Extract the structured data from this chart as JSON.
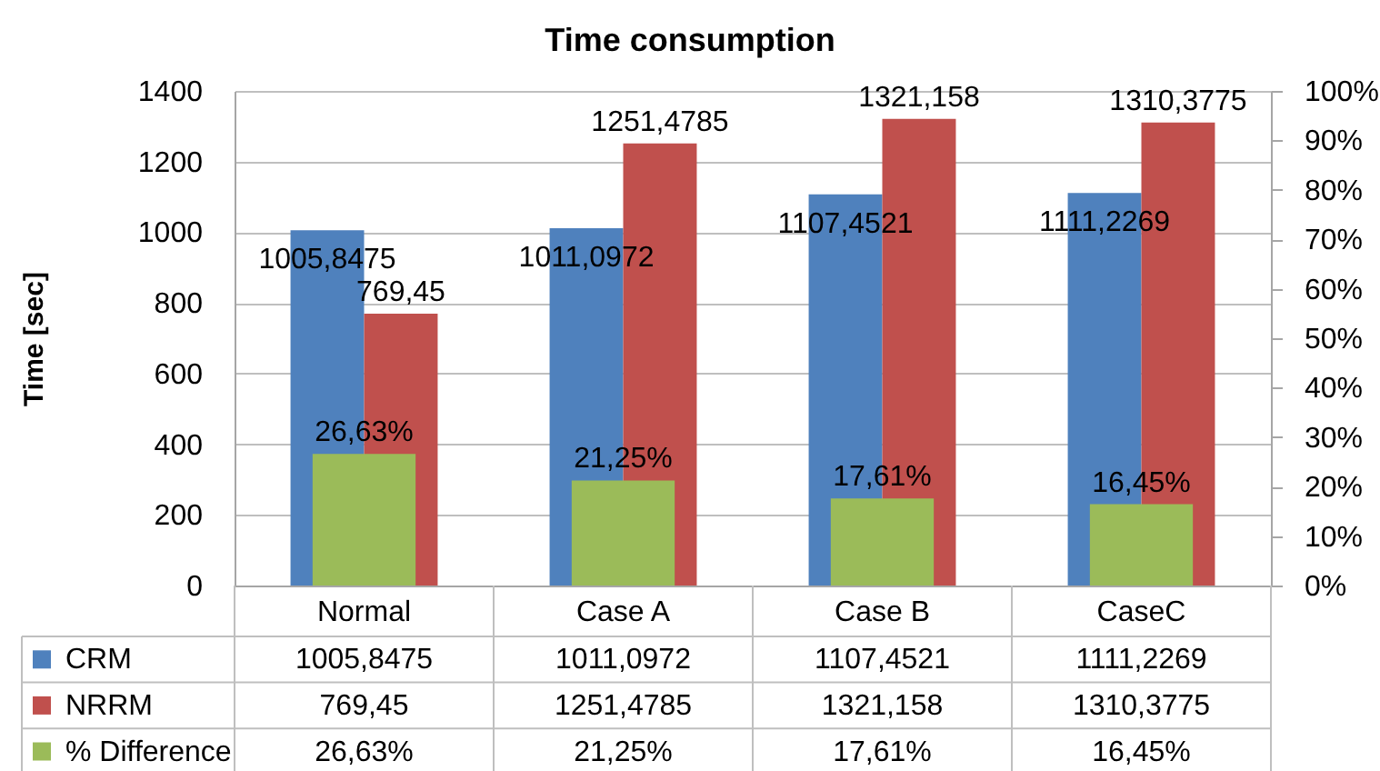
{
  "chart_data": {
    "type": "bar",
    "title": "Time consumption",
    "ylabel": "Time [sec]",
    "categories": [
      "Normal",
      "Case A",
      "Case B",
      "CaseC"
    ],
    "series": [
      {
        "name": "CRM",
        "color": "#4f81bd",
        "values": [
          1005.8475,
          1011.0972,
          1107.4521,
          1111.2269
        ],
        "value_labels": [
          "1005,8475",
          "1011,0972",
          "1107,4521",
          "1111,2269"
        ]
      },
      {
        "name": "NRRM",
        "color": "#c0504d",
        "values": [
          769.45,
          1251.4785,
          1321.158,
          1310.3775
        ],
        "value_labels": [
          "769,45",
          "1251,4785",
          "1321,158",
          "1310,3775"
        ]
      },
      {
        "name": "% Difference",
        "color": "#9bbb59",
        "axis": "y2",
        "values": [
          26.63,
          21.25,
          17.61,
          16.45
        ],
        "value_labels": [
          "26,63%",
          "21,25%",
          "17,61%",
          "16,45%"
        ]
      }
    ],
    "ylim": [
      0,
      1400
    ],
    "yticks": [
      0,
      200,
      400,
      600,
      800,
      1000,
      1200,
      1400
    ],
    "y2lim": [
      0,
      100
    ],
    "y2ticks": [
      {
        "value": 0,
        "label": "0%"
      },
      {
        "value": 10,
        "label": "10%"
      },
      {
        "value": 20,
        "label": "20%"
      },
      {
        "value": 30,
        "label": "30%"
      },
      {
        "value": 40,
        "label": "40%"
      },
      {
        "value": 50,
        "label": "50%"
      },
      {
        "value": 60,
        "label": "60%"
      },
      {
        "value": 70,
        "label": "70%"
      },
      {
        "value": 80,
        "label": "80%"
      },
      {
        "value": 90,
        "label": "90%"
      },
      {
        "value": 100,
        "label": "100%"
      }
    ],
    "grid": "y",
    "legend": "bottom left"
  }
}
